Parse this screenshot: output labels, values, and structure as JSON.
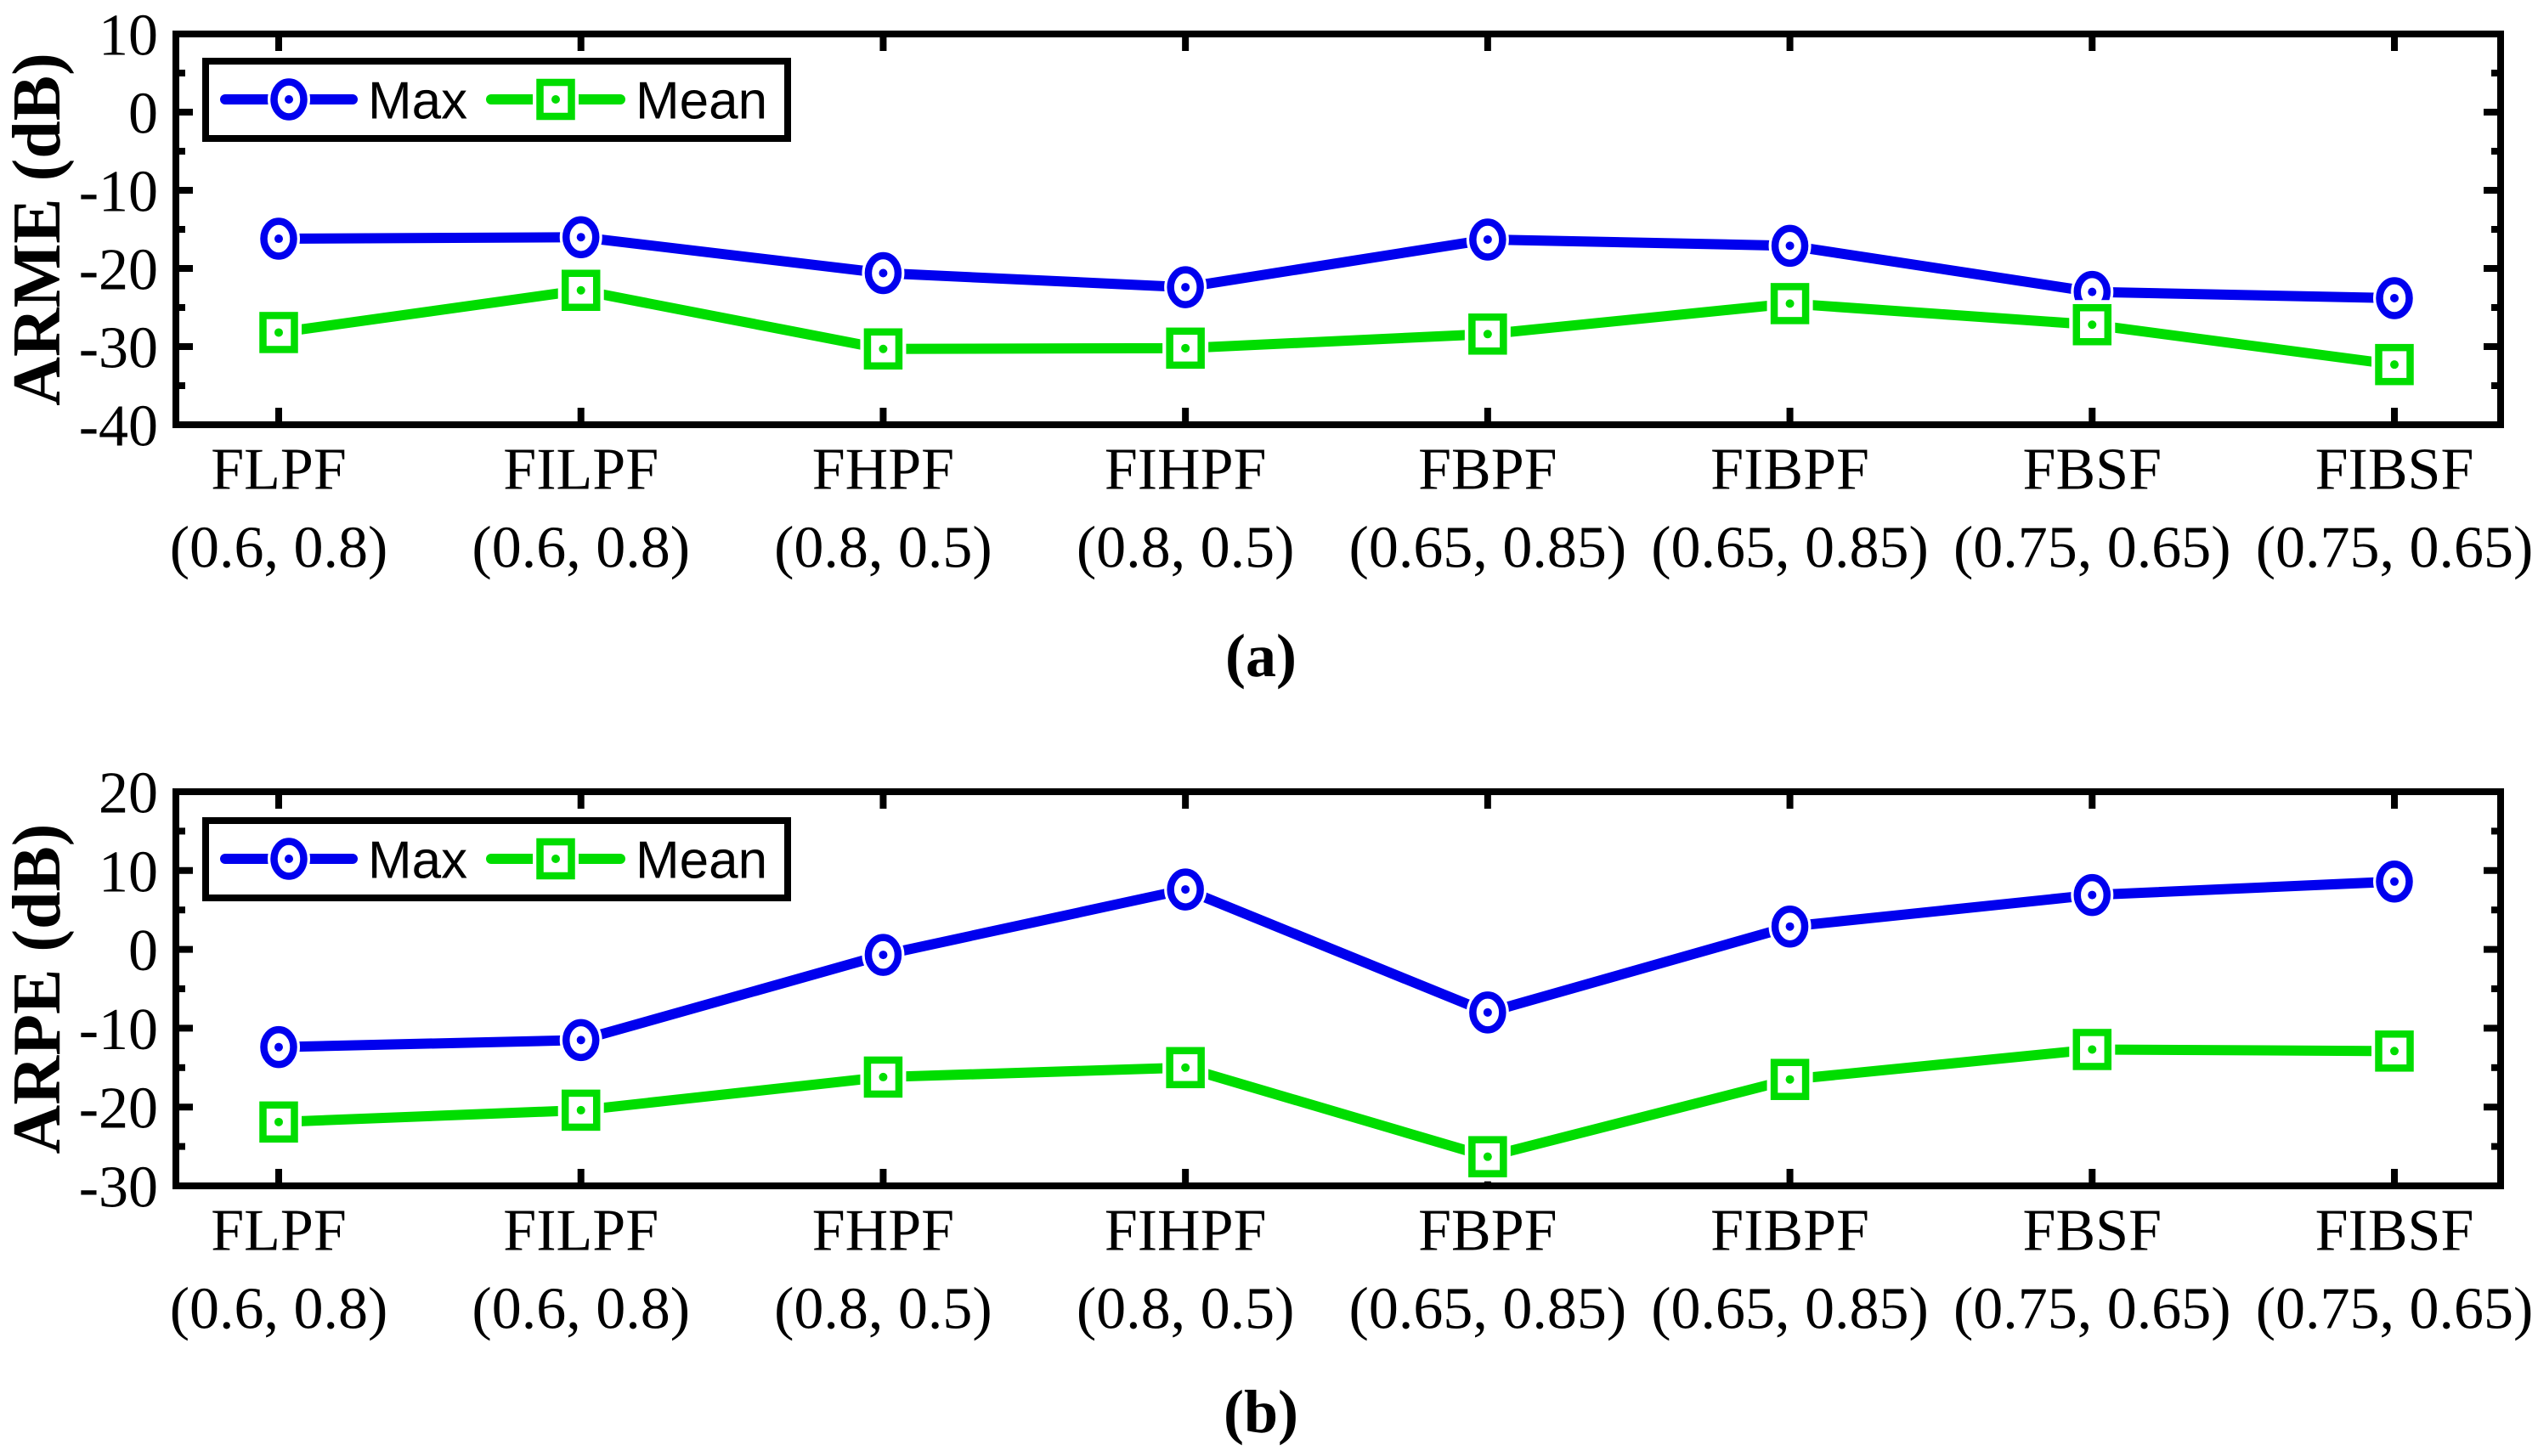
{
  "figure": {
    "background": "#ffffff",
    "foreground": "#000000",
    "accent_blue": "#0000ee",
    "accent_green": "#00dd00"
  },
  "chart_data": [
    {
      "type": "line",
      "panel_caption": "(a)",
      "ylabel": "ARME (dB)",
      "ylim": [
        -40,
        10
      ],
      "yticks": [
        10,
        0,
        -10,
        -20,
        -30,
        -40
      ],
      "y_minor_step": 5,
      "grid": false,
      "legend_position": "top-left-inside",
      "legend_entries": [
        "Max",
        "Mean"
      ],
      "categories": [
        "FLPF",
        "FILPF",
        "FHPF",
        "FIHPF",
        "FBPF",
        "FIBPF",
        "FBSF",
        "FIBSF"
      ],
      "category_params": [
        "(0.6, 0.8)",
        "(0.6, 0.8)",
        "(0.8, 0.5)",
        "(0.8, 0.5)",
        "(0.65, 0.85)",
        "(0.65, 0.85)",
        "(0.75, 0.65)",
        "(0.75, 0.65)"
      ],
      "series": [
        {
          "name": "Max",
          "marker": "circle",
          "color": "#0000ee",
          "values": [
            -16.2,
            -16.0,
            -20.6,
            -22.4,
            -16.3,
            -17.1,
            -23.0,
            -23.8
          ]
        },
        {
          "name": "Mean",
          "marker": "square",
          "color": "#00dd00",
          "values": [
            -28.2,
            -22.8,
            -30.3,
            -30.2,
            -28.4,
            -24.5,
            -27.2,
            -32.3
          ]
        }
      ]
    },
    {
      "type": "line",
      "panel_caption": "(b)",
      "ylabel": "ARPE (dB)",
      "ylim": [
        -30,
        20
      ],
      "yticks": [
        20,
        10,
        0,
        -10,
        -20,
        -30
      ],
      "y_minor_step": 5,
      "grid": false,
      "legend_position": "top-left-inside",
      "legend_entries": [
        "Max",
        "Mean"
      ],
      "categories": [
        "FLPF",
        "FILPF",
        "FHPF",
        "FIHPF",
        "FBPF",
        "FIBPF",
        "FBSF",
        "FIBSF"
      ],
      "category_params": [
        "(0.6, 0.8)",
        "(0.6, 0.8)",
        "(0.8, 0.5)",
        "(0.8, 0.5)",
        "(0.65, 0.85)",
        "(0.65, 0.85)",
        "(0.75, 0.65)",
        "(0.75, 0.65)"
      ],
      "series": [
        {
          "name": "Max",
          "marker": "circle",
          "color": "#0000ee",
          "values": [
            -12.4,
            -11.5,
            -0.7,
            7.6,
            -8.0,
            2.9,
            6.9,
            8.6
          ]
        },
        {
          "name": "Mean",
          "marker": "square",
          "color": "#00dd00",
          "values": [
            -21.9,
            -20.4,
            -16.2,
            -15.0,
            -26.3,
            -16.5,
            -12.7,
            -12.9
          ]
        }
      ]
    }
  ]
}
